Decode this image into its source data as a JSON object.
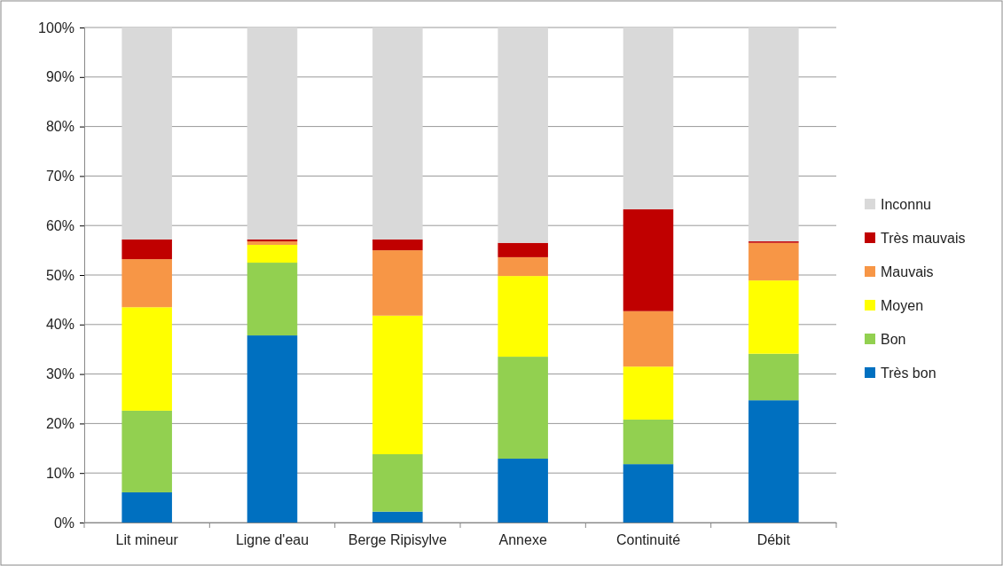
{
  "chart_data": {
    "type": "bar",
    "stacked": true,
    "categories": [
      "Lit mineur",
      "Ligne d'eau",
      "Berge Ripisylve",
      "Annexe",
      "Continuité",
      "Débit"
    ],
    "series": [
      {
        "name": "Très bon",
        "color": "#0070c0",
        "values": [
          6.1,
          37.8,
          2.2,
          12.9,
          11.8,
          24.7
        ]
      },
      {
        "name": "Bon",
        "color": "#92d050",
        "values": [
          16.5,
          14.7,
          11.6,
          20.6,
          9.0,
          9.4
        ]
      },
      {
        "name": "Moyen",
        "color": "#ffff00",
        "values": [
          20.9,
          3.6,
          28.0,
          16.3,
          10.7,
          14.8
        ]
      },
      {
        "name": "Mauvais",
        "color": "#f79646",
        "values": [
          9.7,
          0.7,
          13.2,
          3.8,
          11.2,
          7.6
        ]
      },
      {
        "name": "Très mauvais",
        "color": "#c00000",
        "values": [
          4.0,
          0.4,
          2.2,
          2.9,
          20.6,
          0.3
        ]
      },
      {
        "name": "Inconnu",
        "color": "#d9d9d9",
        "values": [
          42.8,
          42.8,
          42.8,
          43.5,
          36.7,
          43.2
        ]
      }
    ],
    "ylim": [
      0,
      100
    ],
    "yticks": [
      {
        "value": 0,
        "label": "0%"
      },
      {
        "value": 10,
        "label": "10%"
      },
      {
        "value": 20,
        "label": "20%"
      },
      {
        "value": 30,
        "label": "30%"
      },
      {
        "value": 40,
        "label": "40%"
      },
      {
        "value": 50,
        "label": "50%"
      },
      {
        "value": 60,
        "label": "60%"
      },
      {
        "value": 70,
        "label": "70%"
      },
      {
        "value": 80,
        "label": "80%"
      },
      {
        "value": 90,
        "label": "90%"
      },
      {
        "value": 100,
        "label": "100%"
      }
    ],
    "grid": "y",
    "legend": "right"
  }
}
